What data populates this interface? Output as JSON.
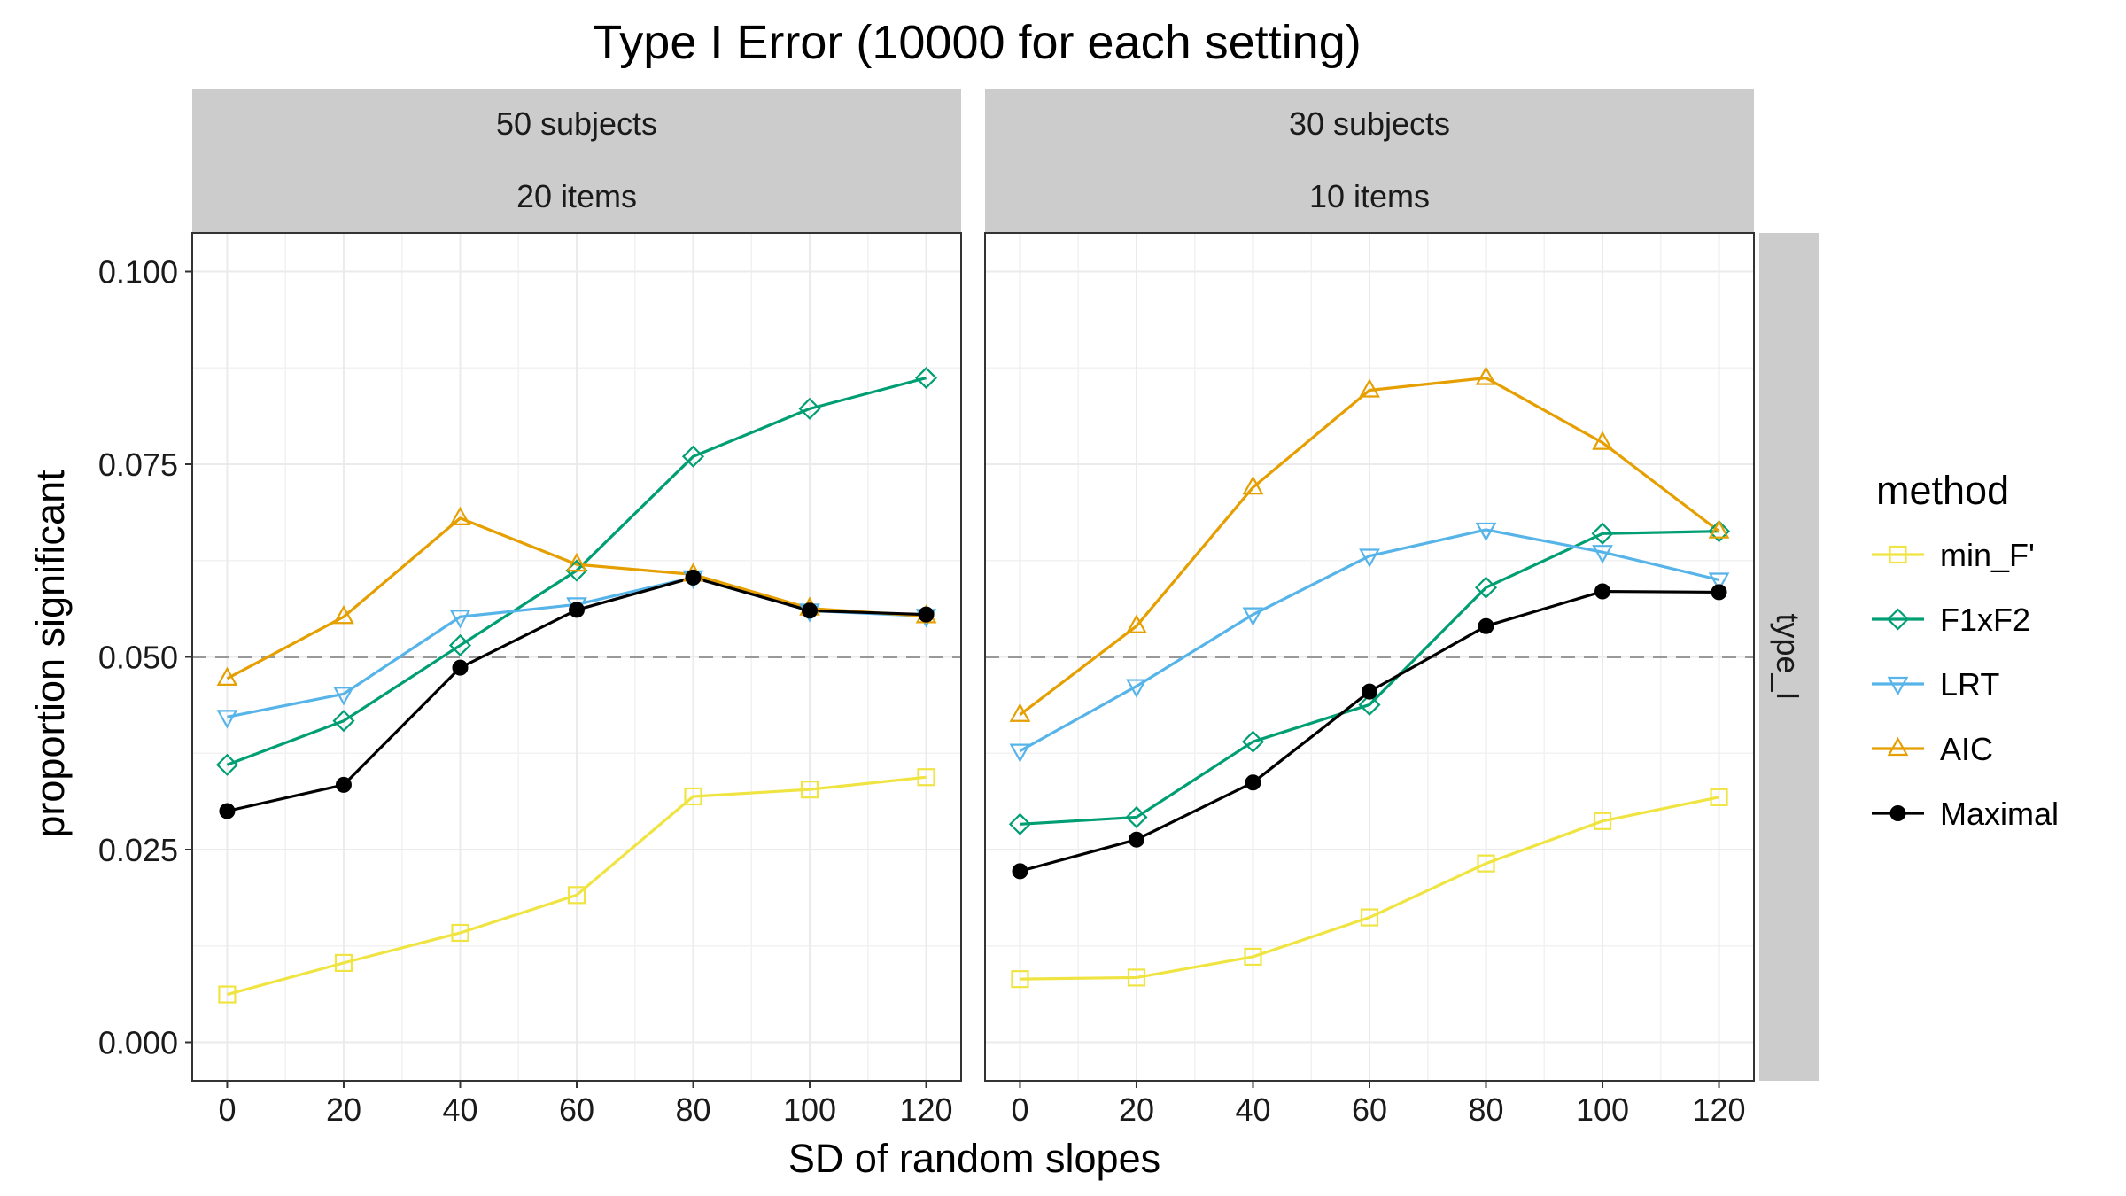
{
  "chart_data": {
    "type": "line",
    "title": "Type I Error (10000 for each setting)",
    "xlabel": "SD of random slopes",
    "ylabel": "proportion significant",
    "x_ticks": [
      "0",
      "20",
      "40",
      "60",
      "80",
      "100",
      "120"
    ],
    "y_ticks": [
      "0.000",
      "0.025",
      "0.050",
      "0.075",
      "0.100"
    ],
    "xlim": [
      -6,
      126
    ],
    "ylim": [
      -0.005,
      0.105
    ],
    "grid": true,
    "reference_line": {
      "y": 0.05,
      "style": "dashed",
      "color": "#999999"
    },
    "facet_row_label": "type_I",
    "legend": {
      "title": "method",
      "position": "right"
    },
    "x": [
      0,
      20,
      40,
      60,
      80,
      100,
      120
    ],
    "panels": [
      {
        "strip_line1": "50 subjects",
        "strip_line2": "20 items",
        "series": [
          {
            "name": "min_F'",
            "color": "#F0E442",
            "marker": "square",
            "values": [
              0.0062,
              0.0103,
              0.0142,
              0.0191,
              0.0319,
              0.0328,
              0.0344
            ]
          },
          {
            "name": "F1xF2",
            "color": "#009E73",
            "marker": "diamond",
            "values": [
              0.036,
              0.0417,
              0.0515,
              0.0612,
              0.076,
              0.0822,
              0.0862
            ]
          },
          {
            "name": "LRT",
            "color": "#56B4E9",
            "marker": "triangle-down",
            "values": [
              0.0422,
              0.0452,
              0.0552,
              0.0568,
              0.0603,
              0.056,
              0.0553
            ]
          },
          {
            "name": "AIC",
            "color": "#E69F00",
            "marker": "triangle-up",
            "values": [
              0.0472,
              0.0552,
              0.068,
              0.062,
              0.0607,
              0.0563,
              0.0553
            ]
          },
          {
            "name": "Maximal",
            "color": "#000000",
            "marker": "circle",
            "values": [
              0.03,
              0.0334,
              0.0486,
              0.0561,
              0.0603,
              0.056,
              0.0555
            ]
          }
        ]
      },
      {
        "strip_line1": "30 subjects",
        "strip_line2": "10 items",
        "series": [
          {
            "name": "min_F'",
            "color": "#F0E442",
            "marker": "square",
            "values": [
              0.0082,
              0.0084,
              0.0111,
              0.0162,
              0.0232,
              0.0287,
              0.0318
            ]
          },
          {
            "name": "F1xF2",
            "color": "#009E73",
            "marker": "diamond",
            "values": [
              0.0283,
              0.0292,
              0.039,
              0.0438,
              0.059,
              0.066,
              0.0663
            ]
          },
          {
            "name": "LRT",
            "color": "#56B4E9",
            "marker": "triangle-down",
            "values": [
              0.0378,
              0.0462,
              0.0555,
              0.0631,
              0.0665,
              0.0636,
              0.06
            ]
          },
          {
            "name": "AIC",
            "color": "#E69F00",
            "marker": "triangle-up",
            "values": [
              0.0425,
              0.054,
              0.072,
              0.0846,
              0.0862,
              0.0778,
              0.0663
            ]
          },
          {
            "name": "Maximal",
            "color": "#000000",
            "marker": "circle",
            "values": [
              0.0222,
              0.0263,
              0.0337,
              0.0455,
              0.054,
              0.0585,
              0.0584
            ]
          }
        ]
      }
    ]
  }
}
